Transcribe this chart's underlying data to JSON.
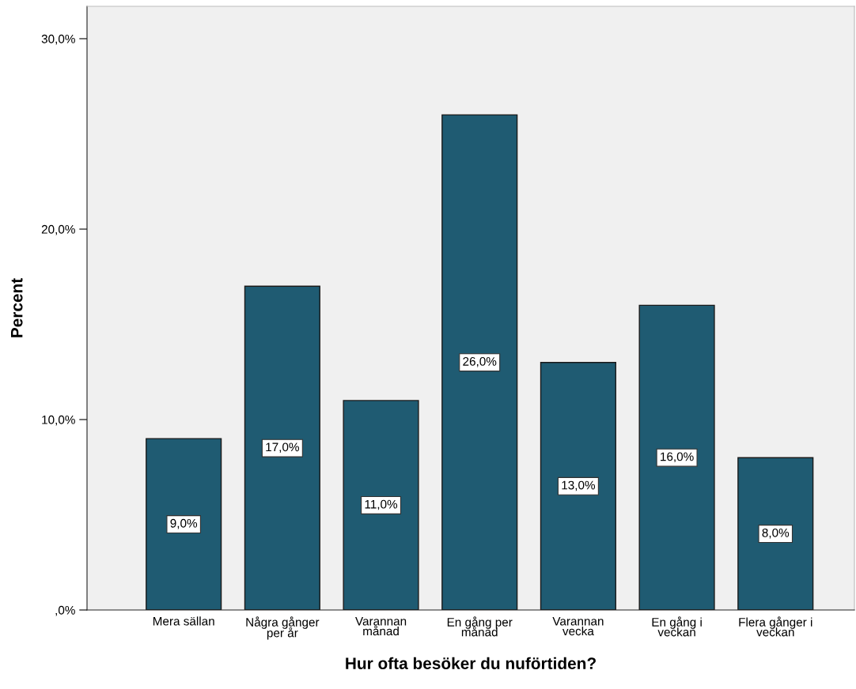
{
  "chart_data": {
    "type": "bar",
    "xlabel": "Hur ofta besöker du nuförtiden?",
    "ylabel": "Percent",
    "categories": [
      "Mera sällan",
      "Några gånger\nper år",
      "Varannan\nmånad",
      "En gång per\nmånad",
      "Varannan\nvecka",
      "En gång i\nveckan",
      "Flera gånger i\nveckan"
    ],
    "values": [
      9,
      17,
      11,
      26,
      13,
      16,
      8
    ],
    "value_labels": [
      "9,0%",
      "17,0%",
      "11,0%",
      "26,0%",
      "13,0%",
      "16,0%",
      "8,0%"
    ],
    "color": "#1f5b72",
    "ylim": [
      0,
      31.7
    ],
    "yticks": [
      {
        "value": 0,
        "label": ",0%"
      },
      {
        "value": 10,
        "label": "10,0%"
      },
      {
        "value": 20,
        "label": "20,0%"
      },
      {
        "value": 30,
        "label": "30,0%"
      }
    ],
    "grid": false
  }
}
